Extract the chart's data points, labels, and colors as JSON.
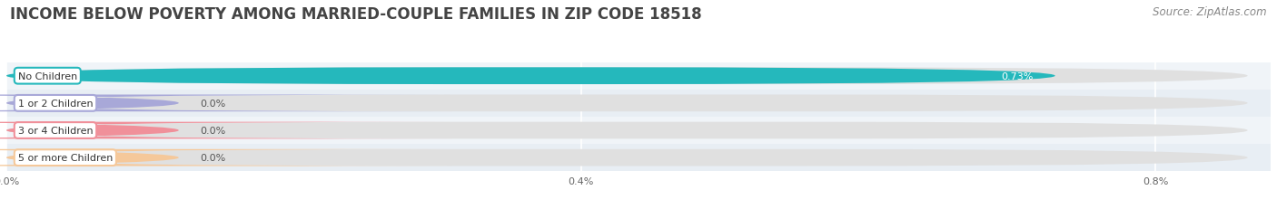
{
  "title": "INCOME BELOW POVERTY AMONG MARRIED-COUPLE FAMILIES IN ZIP CODE 18518",
  "source": "Source: ZipAtlas.com",
  "categories": [
    "No Children",
    "1 or 2 Children",
    "3 or 4 Children",
    "5 or more Children"
  ],
  "values": [
    0.73,
    0.0,
    0.0,
    0.0
  ],
  "bar_colors": [
    "#25b8bc",
    "#a8a8d8",
    "#f0909a",
    "#f5c89a"
  ],
  "xlim_max": 0.88,
  "data_max": 0.8,
  "xticks": [
    0.0,
    0.4,
    0.8
  ],
  "xticklabels": [
    "0.0%",
    "0.4%",
    "0.8%"
  ],
  "bg_color": "#ffffff",
  "row_bg_even": "#f7f7f7",
  "row_bg_odd": "#eeeeee",
  "bar_bg_color": "#e0e0e0",
  "title_fontsize": 12,
  "source_fontsize": 8.5,
  "label_fontsize": 8,
  "value_fontsize": 8,
  "bar_height": 0.62,
  "grid_color": "#cccccc"
}
